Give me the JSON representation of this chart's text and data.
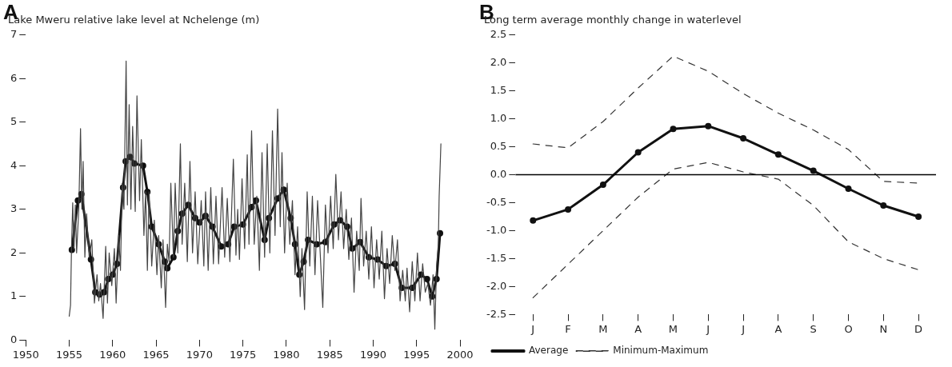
{
  "chart_data": [
    {
      "type": "line",
      "title": "Lake Mweru relative lake level at Nchelenge (m)",
      "annotations": [
        "A"
      ],
      "xlim": [
        1950,
        2000
      ],
      "xticks": [
        1950,
        1955,
        1960,
        1965,
        1970,
        1975,
        1980,
        1985,
        1990,
        1995,
        2000
      ],
      "ylim": [
        0,
        7
      ],
      "yticks": [
        0,
        1,
        2,
        3,
        4,
        5,
        6,
        7
      ],
      "grid": false,
      "legend": false,
      "series": [
        {
          "color": "#444444",
          "marker": "none",
          "x": [
            1955.0,
            1955.15,
            1955.25,
            1955.4,
            1955.55,
            1955.7,
            1955.85,
            1956.1,
            1956.3,
            1956.45,
            1956.6,
            1956.8,
            1957.0,
            1957.3,
            1957.6,
            1957.9,
            1958.2,
            1958.4,
            1958.6,
            1958.9,
            1959.2,
            1959.4,
            1959.6,
            1959.9,
            1960.2,
            1960.4,
            1960.7,
            1960.9,
            1961.1,
            1961.3,
            1961.55,
            1961.7,
            1961.9,
            1962.1,
            1962.3,
            1962.6,
            1962.8,
            1963.1,
            1963.3,
            1963.6,
            1963.8,
            1964.0,
            1964.2,
            1964.5,
            1964.8,
            1965.1,
            1965.3,
            1965.6,
            1965.8,
            1966.1,
            1966.3,
            1966.5,
            1966.7,
            1967.0,
            1967.2,
            1967.5,
            1967.8,
            1968.0,
            1968.3,
            1968.6,
            1968.9,
            1969.2,
            1969.5,
            1969.8,
            1970.2,
            1970.5,
            1970.7,
            1971.0,
            1971.3,
            1971.6,
            1971.9,
            1972.2,
            1972.6,
            1972.9,
            1973.2,
            1973.5,
            1973.9,
            1974.2,
            1974.4,
            1974.6,
            1974.9,
            1975.2,
            1975.5,
            1975.7,
            1976.0,
            1976.3,
            1976.6,
            1976.9,
            1977.2,
            1977.5,
            1977.8,
            1978.1,
            1978.4,
            1978.7,
            1979.0,
            1979.3,
            1979.5,
            1979.8,
            1980.1,
            1980.4,
            1980.7,
            1981.0,
            1981.3,
            1981.6,
            1981.8,
            1982.1,
            1982.4,
            1982.7,
            1983.0,
            1983.3,
            1983.6,
            1983.9,
            1984.2,
            1984.5,
            1984.8,
            1985.1,
            1985.4,
            1985.7,
            1986.0,
            1986.3,
            1986.6,
            1986.9,
            1987.2,
            1987.5,
            1987.8,
            1988.1,
            1988.4,
            1988.6,
            1988.9,
            1989.2,
            1989.5,
            1989.8,
            1990.1,
            1990.4,
            1990.7,
            1991.0,
            1991.3,
            1991.6,
            1991.9,
            1992.2,
            1992.5,
            1992.8,
            1993.1,
            1993.4,
            1993.7,
            1993.9,
            1994.2,
            1994.5,
            1994.8,
            1995.1,
            1995.4,
            1995.7,
            1996.0,
            1996.3,
            1996.6,
            1996.9,
            1997.1,
            1997.3,
            1997.5,
            1997.6,
            1997.8
          ],
          "values": [
            0.55,
            0.8,
            2.0,
            3.15,
            2.1,
            3.1,
            2.0,
            3.0,
            4.85,
            3.0,
            4.1,
            1.9,
            2.9,
            1.9,
            2.3,
            0.85,
            1.5,
            0.9,
            1.3,
            0.5,
            2.15,
            0.85,
            2.0,
            1.25,
            2.1,
            0.85,
            2.4,
            1.6,
            3.6,
            3.0,
            6.4,
            3.1,
            5.4,
            3.0,
            4.9,
            2.95,
            5.6,
            3.2,
            4.6,
            2.4,
            3.4,
            1.6,
            3.4,
            1.7,
            2.75,
            1.5,
            2.4,
            1.2,
            2.3,
            0.75,
            2.2,
            1.8,
            3.6,
            1.9,
            3.6,
            2.0,
            4.5,
            2.2,
            3.6,
            1.8,
            4.1,
            2.0,
            3.4,
            1.75,
            3.2,
            1.7,
            3.4,
            1.6,
            3.5,
            1.75,
            3.3,
            1.75,
            3.5,
            1.9,
            3.25,
            1.8,
            4.15,
            1.95,
            3.0,
            1.85,
            3.7,
            2.1,
            4.25,
            2.2,
            4.8,
            2.2,
            3.3,
            1.6,
            4.3,
            1.9,
            4.5,
            2.0,
            4.8,
            2.4,
            5.3,
            2.6,
            4.3,
            2.0,
            3.6,
            2.2,
            3.2,
            1.5,
            2.6,
            1.0,
            2.1,
            0.7,
            3.4,
            1.7,
            3.3,
            1.5,
            3.2,
            2.0,
            0.75,
            3.1,
            2.0,
            3.3,
            2.1,
            3.8,
            2.3,
            3.4,
            2.1,
            3.0,
            1.85,
            2.8,
            1.1,
            2.5,
            1.6,
            3.25,
            1.7,
            2.5,
            1.4,
            2.6,
            1.2,
            2.3,
            1.4,
            2.5,
            0.95,
            2.1,
            1.3,
            2.4,
            1.6,
            2.3,
            0.9,
            1.6,
            0.9,
            1.65,
            0.65,
            1.8,
            0.9,
            2.0,
            0.9,
            1.75,
            1.1,
            1.3,
            0.8,
            1.5,
            0.25,
            1.7,
            2.2,
            3.3,
            4.5
          ]
        },
        {
          "color": "#111111",
          "marker": "circle",
          "x": [
            1955.3,
            1956.0,
            1956.4,
            1957.5,
            1958.0,
            1958.5,
            1959.0,
            1959.5,
            1960.0,
            1960.5,
            1961.2,
            1961.5,
            1962.0,
            1962.5,
            1963.5,
            1964.0,
            1964.5,
            1965.3,
            1966.0,
            1966.3,
            1967.0,
            1967.5,
            1968.0,
            1968.7,
            1969.5,
            1970.0,
            1970.7,
            1971.5,
            1972.5,
            1973.3,
            1974.0,
            1975.0,
            1976.0,
            1976.5,
            1977.5,
            1978.0,
            1979.0,
            1979.7,
            1980.5,
            1981.0,
            1981.5,
            1982.0,
            1982.5,
            1983.5,
            1984.5,
            1985.5,
            1986.2,
            1987.0,
            1987.6,
            1988.5,
            1989.5,
            1990.5,
            1991.5,
            1992.5,
            1993.3,
            1994.5,
            1995.5,
            1996.2,
            1996.8,
            1997.3,
            1997.7
          ],
          "values": [
            2.07,
            3.2,
            3.35,
            1.85,
            1.1,
            1.05,
            1.1,
            1.4,
            1.5,
            1.75,
            3.5,
            4.1,
            4.2,
            4.05,
            4.0,
            3.4,
            2.6,
            2.2,
            1.8,
            1.65,
            1.9,
            2.5,
            2.9,
            3.1,
            2.8,
            2.7,
            2.85,
            2.6,
            2.15,
            2.2,
            2.6,
            2.65,
            3.05,
            3.2,
            2.3,
            2.8,
            3.25,
            3.45,
            2.8,
            2.2,
            1.5,
            1.8,
            2.3,
            2.2,
            2.25,
            2.65,
            2.75,
            2.6,
            2.1,
            2.25,
            1.9,
            1.85,
            1.7,
            1.75,
            1.2,
            1.2,
            1.5,
            1.4,
            1.0,
            1.4,
            2.45
          ]
        }
      ]
    },
    {
      "type": "line",
      "title": "Long term average monthly change in waterlevel",
      "annotations": [
        "B"
      ],
      "categories": [
        "J",
        "F",
        "M",
        "A",
        "M",
        "J",
        "J",
        "A",
        "S",
        "O",
        "N",
        "D"
      ],
      "ylim": [
        -2.5,
        2.5
      ],
      "yticks": [
        {
          "value": -2.5,
          "label": "-2.5"
        },
        {
          "value": -2,
          "label": "-2.0"
        },
        {
          "value": -1.5,
          "label": "-1.5"
        },
        {
          "value": -1,
          "label": "-1.0"
        },
        {
          "value": -0.5,
          "label": "-0.5"
        },
        {
          "value": 0,
          "label": "0.0"
        },
        {
          "value": 0.5,
          "label": "0.5"
        },
        {
          "value": 1,
          "label": "1.0"
        },
        {
          "value": 1.5,
          "label": "1.5"
        },
        {
          "value": 2,
          "label": "2.0"
        },
        {
          "value": 2.5,
          "label": "2.5"
        }
      ],
      "grid": false,
      "legend": "bottom",
      "ref_lines": [
        {
          "axis": "y",
          "value": 0,
          "color": "#000000",
          "line_style": "solid"
        }
      ],
      "series": [
        {
          "name": "Average",
          "color": "#111111",
          "marker": "circle",
          "line_style": "solid",
          "values": [
            -0.82,
            -0.62,
            -0.18,
            0.4,
            0.82,
            0.87,
            0.65,
            0.36,
            0.07,
            -0.25,
            -0.55,
            -0.75
          ]
        },
        {
          "name": "Minimum-Maximum",
          "color": "#333333",
          "marker": "none",
          "line_style": "dashed",
          "values": [
            0.55,
            0.48,
            0.95,
            1.55,
            2.12,
            1.85,
            1.45,
            1.1,
            0.8,
            0.45,
            -0.12,
            -0.15
          ]
        },
        {
          "color": "#333333",
          "marker": "none",
          "line_style": "dashed",
          "values": [
            -2.2,
            -1.6,
            -1.0,
            -0.4,
            0.1,
            0.22,
            0.05,
            -0.08,
            -0.55,
            -1.2,
            -1.5,
            -1.7
          ]
        }
      ]
    }
  ]
}
